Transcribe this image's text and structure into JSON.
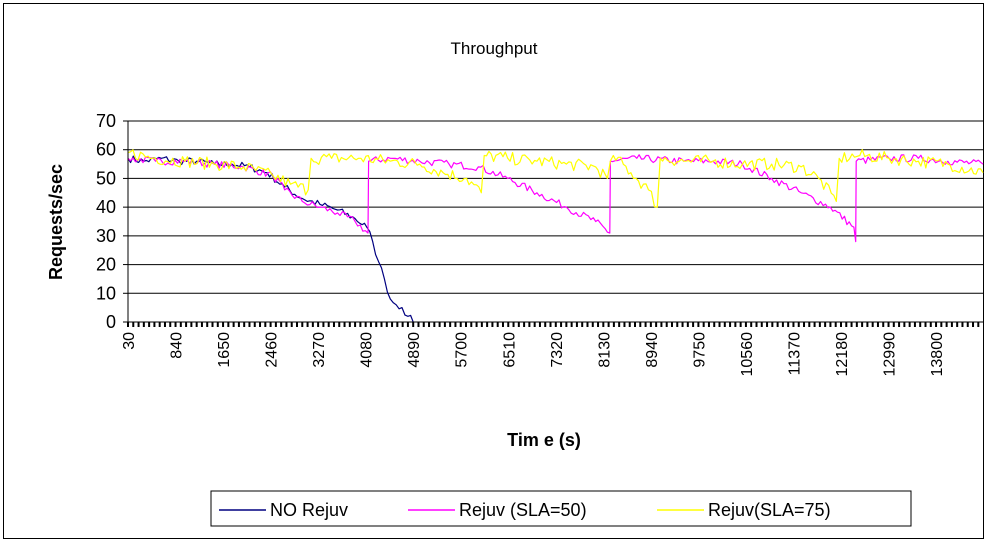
{
  "chart_data": {
    "type": "line",
    "title": "Throughput",
    "xlabel": "Tim e (s)",
    "ylabel": "Requests/sec",
    "ylim": [
      0,
      70
    ],
    "xlim": [
      30,
      14600
    ],
    "yticks": [
      0,
      10,
      20,
      30,
      40,
      50,
      60,
      70
    ],
    "xticks": [
      "30",
      "840",
      "1650",
      "2460",
      "3270",
      "4080",
      "4890",
      "5700",
      "6510",
      "7320",
      "8130",
      "8940",
      "9750",
      "10560",
      "11370",
      "12180",
      "12990",
      "13800"
    ],
    "grid": "horizontal",
    "legend_position": "bottom",
    "series": [
      {
        "name": "NO Rejuv",
        "color": "#000080",
        "x": [
          30,
          300,
          600,
          900,
          1200,
          1500,
          1800,
          2100,
          2400,
          2700,
          3000,
          3300,
          3600,
          3900,
          4100,
          4200,
          4300,
          4400,
          4500,
          4600,
          4700,
          4800,
          4890
        ],
        "y": [
          57,
          56,
          57,
          56,
          56,
          55,
          55,
          54,
          52,
          47,
          43,
          41,
          39,
          36,
          33,
          28,
          21,
          15,
          8,
          6,
          5,
          2,
          0
        ]
      },
      {
        "name": "Rejuv (SLA=50)",
        "color": "#FF00FF",
        "x": [
          30,
          500,
          1000,
          1500,
          2000,
          2500,
          2700,
          3000,
          3300,
          3600,
          3900,
          4120,
          4130,
          4500,
          5000,
          5500,
          6000,
          6500,
          7000,
          7500,
          8000,
          8240,
          8250,
          8700,
          9500,
          10000,
          10500,
          11000,
          11500,
          12000,
          12400,
          12430,
          12440,
          13000,
          13500,
          14000,
          14600
        ],
        "y": [
          57,
          56,
          56,
          55,
          54,
          51,
          46,
          42,
          40,
          38,
          35,
          31,
          56,
          57,
          56,
          55,
          54,
          50,
          45,
          40,
          35,
          31,
          56,
          57,
          56,
          56,
          55,
          50,
          45,
          40,
          33,
          28,
          56,
          57,
          57,
          56,
          55
        ]
      },
      {
        "name": "Rejuv(SLA=75)",
        "color": "#FFFF00",
        "x": [
          30,
          500,
          1000,
          1500,
          2000,
          2500,
          2800,
          3100,
          3150,
          3500,
          4000,
          4500,
          5000,
          5400,
          5800,
          6050,
          6100,
          6500,
          7000,
          7500,
          8000,
          8200,
          8300,
          8600,
          8900,
          9050,
          9100,
          9500,
          10000,
          10500,
          11000,
          11500,
          11800,
          12100,
          12150,
          12500,
          13000,
          13500,
          14000,
          14600
        ],
        "y": [
          59,
          57,
          56,
          55,
          54,
          51,
          48,
          46,
          57,
          57,
          57,
          56,
          55,
          52,
          50,
          45,
          58,
          57,
          56,
          55,
          54,
          50,
          58,
          52,
          46,
          40,
          57,
          56,
          56,
          55,
          55,
          54,
          50,
          42,
          57,
          58,
          57,
          56,
          55,
          52
        ]
      }
    ]
  }
}
